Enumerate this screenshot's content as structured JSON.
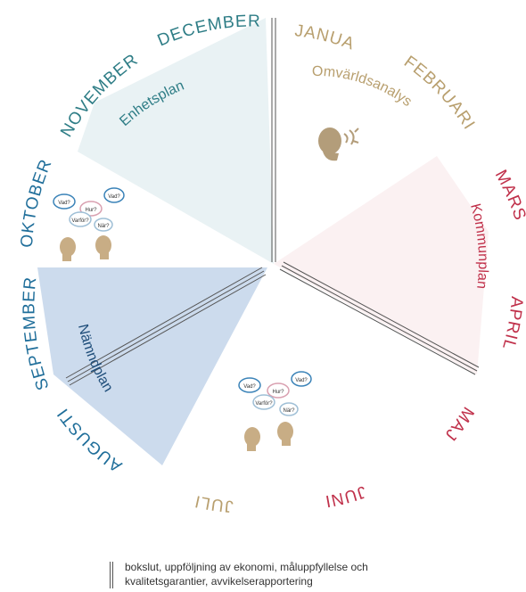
{
  "months": [
    "JANUARI",
    "FEBRUARI",
    "MARS",
    "APRIL",
    "MAJ",
    "JUNI",
    "JULI",
    "AUGUSTI",
    "SEPTEMBER",
    "OKTOBER",
    "NOVEMBER",
    "DECEMBER"
  ],
  "phases": {
    "omvarldsanalys": "Omvärldsanalys",
    "kommunplan": "Kommunplan",
    "namndplan": "Nämndplan",
    "enhetsplan": "Enhetsplan"
  },
  "bubbles": [
    "Vad?",
    "Hur?",
    "Varför?",
    "När?"
  ],
  "legend": {
    "line1": "bokslut, uppföljning av ekonomi, måluppfyllelse och",
    "line2": "kvalitetsgarantier, avvikelserapportering"
  },
  "colors": {
    "teal": "#2e7d86",
    "tan": "#b89f6e",
    "red": "#c0304a",
    "blue": "#1f6e9a",
    "sector_teal": "#e7f1f3",
    "sector_pink": "#fbf0f1",
    "sector_blue": "#c9d9ec",
    "divider": "#555555"
  },
  "icons": [
    "head-silhouette-icon",
    "speech-bubble-icon"
  ]
}
